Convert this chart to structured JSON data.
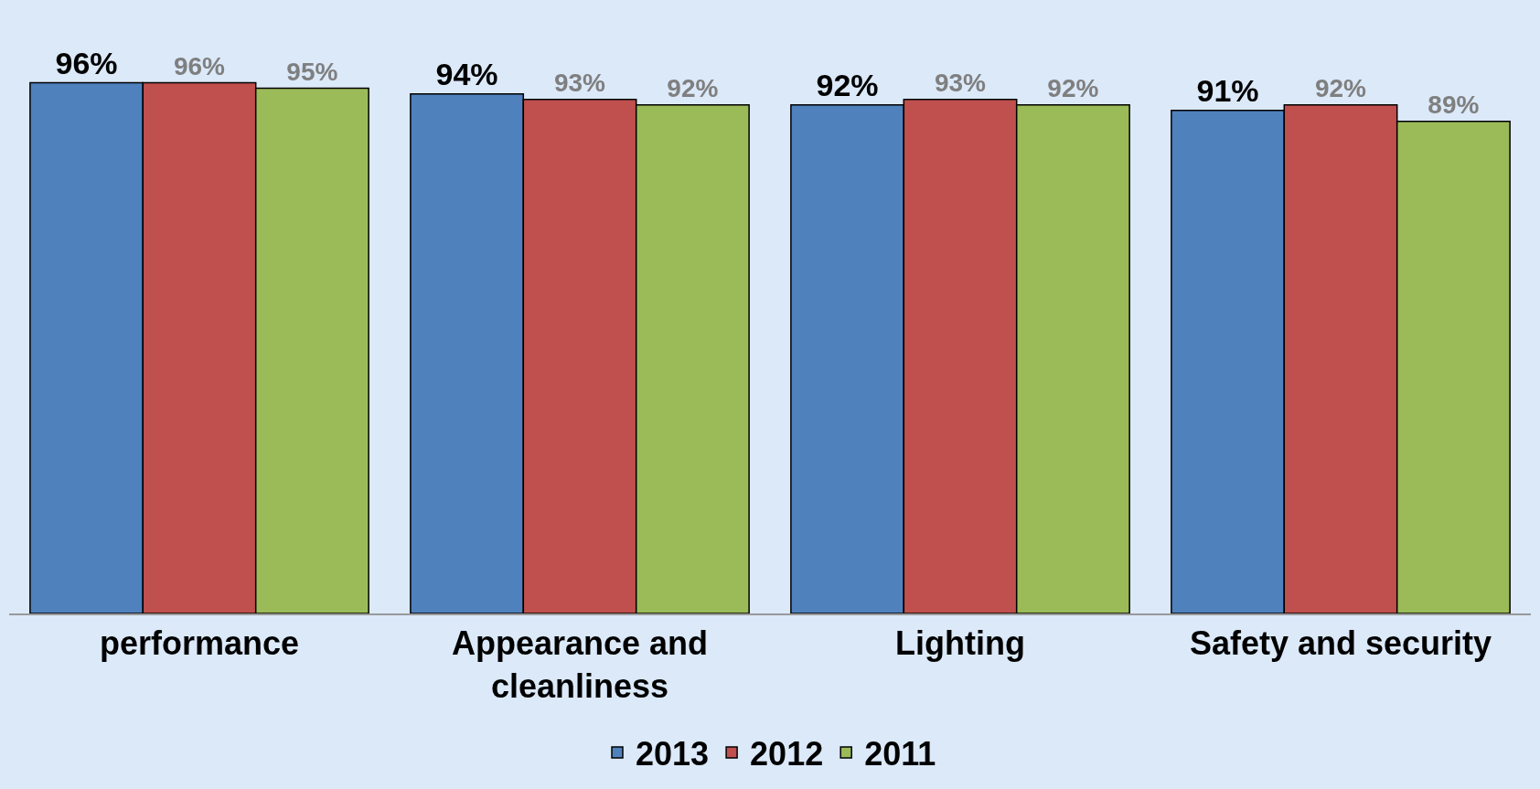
{
  "chart_data": {
    "type": "bar",
    "categories": [
      "performance",
      "Appearance and cleanliness",
      "Lighting",
      "Safety and security"
    ],
    "series": [
      {
        "name": "2013",
        "color": "#4f81bd",
        "values": [
          96,
          94,
          92,
          91
        ],
        "value_labels": [
          "96%",
          "94%",
          "92%",
          "91%"
        ]
      },
      {
        "name": "2012",
        "color": "#c0504d",
        "values": [
          96,
          93,
          93,
          92
        ],
        "value_labels": [
          "96%",
          "93%",
          "93%",
          "92%"
        ]
      },
      {
        "name": "2011",
        "color": "#9bbb59",
        "values": [
          95,
          92,
          92,
          89
        ],
        "value_labels": [
          "95%",
          "92%",
          "92%",
          "89%"
        ]
      }
    ],
    "legend": "bottom",
    "grid": false
  }
}
